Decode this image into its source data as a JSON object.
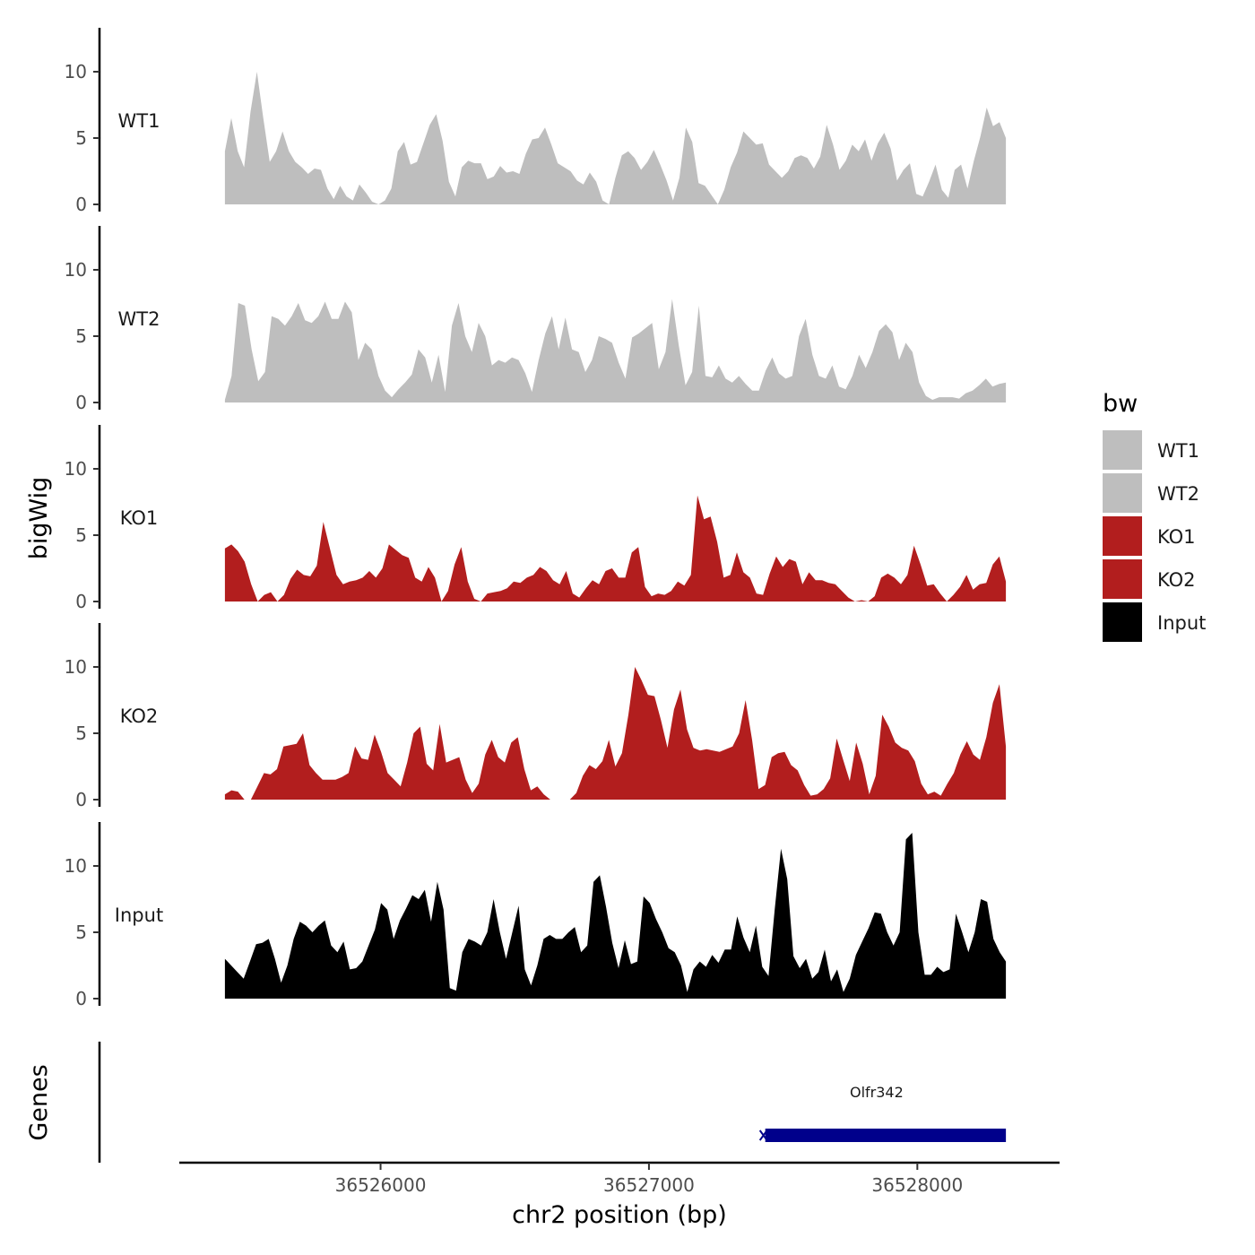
{
  "chart_data": {
    "type": "area",
    "xlabel": "chr2 position (bp)",
    "ylabel": "bigWig",
    "genes_label": "Genes",
    "xlim": [
      36525250,
      36528530
    ],
    "ylim": [
      0,
      13.5
    ],
    "y_ticks": [
      0,
      5,
      10
    ],
    "x_ticks": [
      36526000,
      36527000,
      36528000
    ],
    "x_start": 36525420,
    "x_end": 36528330,
    "legend": {
      "title": "bw",
      "entries": [
        {
          "label": "WT1",
          "color": "#bebebe"
        },
        {
          "label": "WT2",
          "color": "#bebebe"
        },
        {
          "label": "KO1",
          "color": "#b21e1e"
        },
        {
          "label": "KO2",
          "color": "#b21e1e"
        },
        {
          "label": "Input",
          "color": "#000000"
        }
      ]
    },
    "series": [
      {
        "name": "WT1",
        "color": "#bebebe",
        "values": [
          4.0,
          6.5,
          4.0,
          2.8,
          7.0,
          10.0,
          6.5,
          3.2,
          4.0,
          5.5,
          4.0,
          3.2,
          2.8,
          2.3,
          2.7,
          2.6,
          1.2,
          0.4,
          1.4,
          0.6,
          0.3,
          1.5,
          0.9,
          0.2,
          0,
          0.3,
          1.2,
          4.0,
          4.7,
          3.0,
          3.2,
          4.6,
          6.0,
          6.8,
          4.8,
          1.7,
          0.6,
          2.8,
          3.3,
          3.1,
          3.1,
          1.9,
          2.1,
          2.9,
          2.4,
          2.5,
          2.3,
          3.8,
          4.9,
          5.0,
          5.8,
          4.5,
          3.1,
          2.8,
          2.5,
          1.8,
          1.5,
          2.4,
          1.7,
          0.3,
          0,
          2.0,
          3.7,
          4.0,
          3.5,
          2.6,
          3.2,
          4.1,
          3.0,
          1.8,
          0.3,
          2.0,
          5.8,
          4.7,
          1.6,
          1.4,
          0.7,
          0,
          1.1,
          2.8,
          3.9,
          5.5,
          5.0,
          4.5,
          4.6,
          3.0,
          2.5,
          2.0,
          2.5,
          3.5,
          3.7,
          3.5,
          2.7,
          3.6,
          6.0,
          4.5,
          2.6,
          3.3,
          4.5,
          4.0,
          4.9,
          3.3,
          4.6,
          5.4,
          4.2,
          1.8,
          2.6,
          3.1,
          0.8,
          0.6,
          1.7,
          3.0,
          1.1,
          0.5,
          2.6,
          3.0,
          1.2,
          3.3,
          5.1,
          7.3,
          5.9,
          6.2,
          5.0
        ]
      },
      {
        "name": "WT2",
        "color": "#bebebe",
        "values": [
          0.2,
          2.0,
          7.5,
          7.3,
          4.0,
          1.6,
          2.3,
          6.5,
          6.3,
          5.8,
          6.5,
          7.5,
          6.2,
          6.0,
          6.5,
          7.6,
          6.3,
          6.3,
          7.6,
          6.8,
          3.2,
          4.5,
          4.0,
          2.0,
          0.9,
          0.4,
          1.0,
          1.5,
          2.1,
          4.0,
          3.4,
          1.5,
          3.6,
          0.8,
          5.8,
          7.5,
          5.0,
          3.8,
          6.0,
          5.0,
          2.8,
          3.2,
          3.0,
          3.4,
          3.2,
          2.2,
          0.8,
          3.2,
          5.2,
          6.5,
          4.0,
          6.4,
          4.0,
          3.8,
          2.3,
          3.2,
          5.0,
          4.8,
          4.5,
          3.0,
          1.8,
          4.9,
          5.2,
          5.6,
          6.0,
          2.5,
          3.8,
          7.8,
          4.3,
          1.3,
          2.3,
          7.3,
          2.0,
          1.9,
          2.8,
          1.8,
          1.5,
          2.0,
          1.4,
          0.9,
          0.9,
          2.4,
          3.4,
          2.2,
          1.8,
          2.0,
          5.0,
          6.3,
          3.6,
          2.0,
          1.8,
          2.8,
          1.2,
          1.0,
          2.0,
          3.6,
          2.6,
          3.8,
          5.4,
          5.9,
          5.3,
          3.2,
          4.5,
          3.8,
          1.5,
          0.5,
          0.2,
          0.4,
          0.4,
          0.4,
          0.3,
          0.7,
          0.9,
          1.3,
          1.8,
          1.2,
          1.4,
          1.5
        ]
      },
      {
        "name": "KO1",
        "color": "#b21e1e",
        "values": [
          4.0,
          4.3,
          3.8,
          3.0,
          1.3,
          0,
          0.5,
          0.7,
          0,
          0.5,
          1.7,
          2.4,
          2.0,
          1.9,
          2.7,
          6.0,
          4.0,
          2.0,
          1.3,
          1.5,
          1.6,
          1.8,
          2.3,
          1.8,
          2.5,
          4.3,
          3.9,
          3.5,
          3.3,
          1.8,
          1.5,
          2.6,
          1.8,
          0,
          0.8,
          2.8,
          4.1,
          1.5,
          0.2,
          0,
          0.6,
          0.7,
          0.8,
          1.0,
          1.5,
          1.4,
          1.8,
          2.0,
          2.6,
          2.3,
          1.6,
          1.3,
          2.3,
          0.6,
          0.3,
          1.0,
          1.6,
          1.3,
          2.3,
          2.5,
          1.8,
          1.8,
          3.7,
          4.1,
          1.1,
          0.4,
          0.6,
          0.5,
          0.8,
          1.5,
          1.2,
          2.0,
          8.0,
          6.2,
          6.4,
          4.5,
          1.8,
          2.0,
          3.7,
          2.2,
          1.8,
          0.6,
          0.5,
          2.1,
          3.4,
          2.6,
          3.2,
          3.0,
          1.3,
          2.2,
          1.6,
          1.6,
          1.4,
          1.3,
          0.8,
          0.3,
          0,
          0.1,
          0,
          0.4,
          1.8,
          2.1,
          1.8,
          1.3,
          2.0,
          4.2,
          2.8,
          1.2,
          1.3,
          0.6,
          0,
          0.5,
          1.1,
          2.0,
          0.9,
          1.3,
          1.4,
          2.8,
          3.4,
          1.5
        ]
      },
      {
        "name": "KO2",
        "color": "#b21e1e",
        "values": [
          0.4,
          0.7,
          0.6,
          0,
          0,
          1.0,
          2.0,
          1.9,
          2.3,
          4.0,
          4.1,
          4.2,
          5.0,
          2.6,
          2.0,
          1.5,
          1.5,
          1.5,
          1.7,
          2.0,
          4.0,
          3.1,
          3.0,
          4.9,
          3.6,
          2.0,
          1.5,
          1.0,
          2.8,
          5.0,
          5.5,
          2.7,
          2.2,
          5.7,
          2.8,
          3.0,
          3.2,
          1.5,
          0.5,
          1.2,
          3.4,
          4.5,
          3.2,
          2.8,
          4.3,
          4.7,
          2.3,
          0.7,
          1.0,
          0.4,
          0,
          0,
          0,
          0,
          0.5,
          1.8,
          2.6,
          2.3,
          2.9,
          4.5,
          2.5,
          3.5,
          6.4,
          10.0,
          9.0,
          7.9,
          7.8,
          6.0,
          3.9,
          6.8,
          8.3,
          5.3,
          3.9,
          3.7,
          3.8,
          3.7,
          3.6,
          3.8,
          4.0,
          5.0,
          7.5,
          4.5,
          0.8,
          1.1,
          3.2,
          3.5,
          3.6,
          2.6,
          2.2,
          1.1,
          0.3,
          0.4,
          0.8,
          1.6,
          4.6,
          3.0,
          1.4,
          4.3,
          2.7,
          0.4,
          1.8,
          6.4,
          5.5,
          4.3,
          3.9,
          3.7,
          2.9,
          1.2,
          0.4,
          0.6,
          0.3,
          1.2,
          2.0,
          3.4,
          4.4,
          3.4,
          3.0,
          4.7,
          7.3,
          8.7,
          4.0
        ]
      },
      {
        "name": "Input",
        "color": "#000000",
        "values": [
          3.0,
          2.5,
          2.0,
          1.5,
          2.8,
          4.1,
          4.2,
          4.5,
          3.0,
          1.2,
          2.5,
          4.5,
          5.8,
          5.5,
          5.0,
          5.5,
          5.9,
          4.0,
          3.5,
          4.3,
          2.2,
          2.3,
          2.8,
          4.0,
          5.2,
          7.2,
          6.7,
          4.5,
          5.9,
          6.8,
          7.8,
          7.5,
          8.2,
          5.8,
          8.8,
          6.7,
          0.8,
          0.6,
          3.5,
          4.5,
          4.3,
          4.0,
          5.0,
          7.5,
          5.0,
          3.0,
          5.0,
          7.0,
          2.2,
          1.0,
          2.5,
          4.5,
          4.8,
          4.5,
          4.5,
          5.0,
          5.4,
          3.5,
          4.0,
          8.8,
          9.3,
          6.9,
          4.2,
          2.3,
          4.4,
          2.6,
          2.8,
          7.7,
          7.2,
          6.0,
          5.0,
          3.8,
          3.5,
          2.5,
          0.5,
          2.2,
          2.8,
          2.4,
          3.3,
          2.7,
          3.7,
          3.7,
          6.2,
          4.6,
          3.5,
          5.5,
          2.4,
          1.7,
          6.7,
          11.3,
          9.0,
          3.2,
          2.3,
          3.0,
          1.5,
          2.0,
          3.7,
          1.3,
          2.2,
          0.5,
          1.5,
          3.3,
          4.3,
          5.3,
          6.5,
          6.4,
          5.0,
          4.0,
          5.0,
          12.0,
          12.5,
          5.0,
          1.8,
          1.8,
          2.4,
          2.0,
          2.2,
          6.4,
          5.0,
          3.5,
          5.0,
          7.5,
          7.3,
          4.5,
          3.5,
          2.8
        ]
      }
    ],
    "genes": [
      {
        "name": "Olfr342",
        "start": 36527420,
        "end": 36528330,
        "color": "#00008b"
      }
    ]
  }
}
